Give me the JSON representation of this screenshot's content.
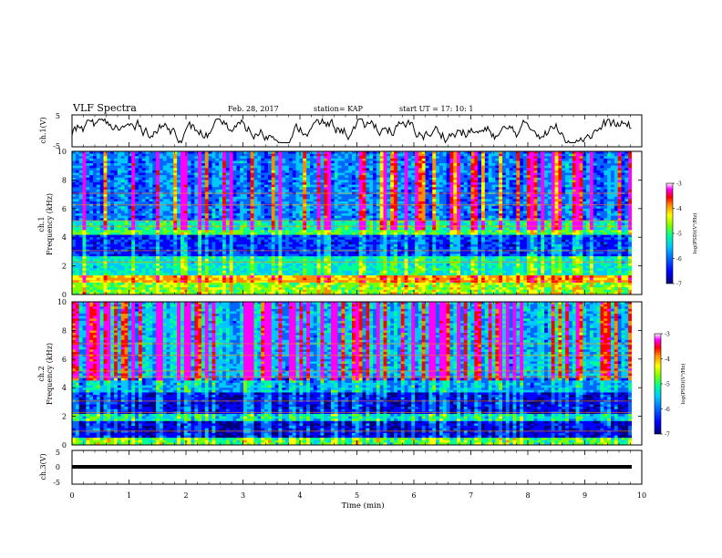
{
  "header": {
    "title": "VLF Spectra",
    "date": "Feb. 28, 2017",
    "station": "station= KAP",
    "start": "start  UT  =   17: 10: 1"
  },
  "colors": {
    "colormap": [
      "#00007a",
      "#0000ff",
      "#0066ff",
      "#00c8ff",
      "#00ff96",
      "#7dff00",
      "#ffff00",
      "#ff8c00",
      "#ff0000",
      "#ff00ff",
      "#ffffff"
    ],
    "trace": "#000000"
  },
  "chart_data": [
    {
      "type": "line",
      "ylabel": "ch.1(V)",
      "ylim": [
        -5,
        5
      ],
      "yticks": [
        "5",
        "-5"
      ],
      "xlim": [
        0,
        10
      ]
    },
    {
      "type": "heatmap",
      "ylabel_top": "ch.1",
      "ylabel": "Frequency (kHz)",
      "ylim": [
        0,
        10
      ],
      "yticks": [
        "0",
        "2",
        "4",
        "6",
        "8",
        "10"
      ],
      "colorbar": {
        "label": "log(PSD)(V²/Hz)",
        "ticks": [
          "-3",
          "-4",
          "-5",
          "-6",
          "-7"
        ],
        "range": [
          -7,
          -3
        ]
      }
    },
    {
      "type": "heatmap",
      "ylabel_top": "ch.2",
      "ylabel": "Frequency (kHz)",
      "ylim": [
        0,
        10
      ],
      "yticks": [
        "0",
        "2",
        "4",
        "6",
        "8",
        "10"
      ],
      "colorbar": {
        "label": "log(PSD)(V²/Hz)",
        "ticks": [
          "-3",
          "-4",
          "-5",
          "-6",
          "-7"
        ],
        "range": [
          -7,
          -3
        ]
      }
    },
    {
      "type": "line",
      "ylabel": "ch.3(V)",
      "ylim": [
        -5,
        5
      ],
      "yticks": [
        "5",
        "0",
        "-5"
      ],
      "trace_value": 0
    }
  ],
  "xaxis": {
    "label": "Time (min)",
    "ticks": [
      "0",
      "1",
      "2",
      "3",
      "4",
      "5",
      "6",
      "7",
      "8",
      "9",
      "10"
    ],
    "xlim": [
      0,
      10
    ]
  }
}
